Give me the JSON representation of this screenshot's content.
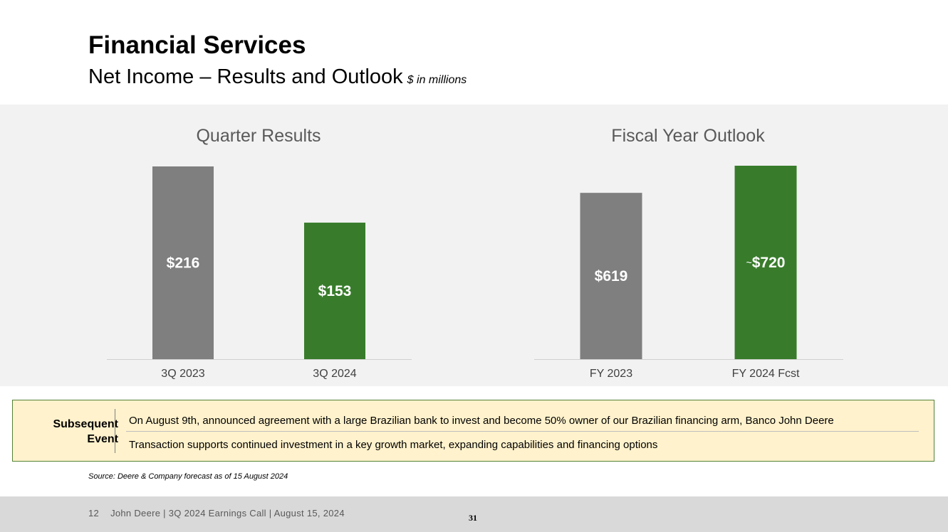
{
  "header": {
    "title": "Financial Services",
    "subtitle": "Net Income – Results and Outlook",
    "units": "$ in millions"
  },
  "colors": {
    "gray_bar": "#7f7f7f",
    "green_bar": "#387c2b",
    "band": "#f2f2f2"
  },
  "chart_data": [
    {
      "type": "bar",
      "title": "Quarter Results",
      "categories": [
        "3Q 2023",
        "3Q 2024"
      ],
      "values": [
        216,
        153
      ],
      "labels": [
        "$216",
        "$153"
      ],
      "colors": [
        "#7f7f7f",
        "#387c2b"
      ],
      "xlabel": "",
      "ylabel": "",
      "ylim": [
        0,
        216
      ],
      "grid": false,
      "legend": "none"
    },
    {
      "type": "bar",
      "title": "Fiscal Year Outlook",
      "categories": [
        "FY 2023",
        "FY 2024 Fcst"
      ],
      "values": [
        619,
        720
      ],
      "labels": [
        "$619",
        "$720"
      ],
      "label_prefixes": [
        "",
        "~"
      ],
      "colors": [
        "#7f7f7f",
        "#387c2b"
      ],
      "xlabel": "",
      "ylabel": "",
      "ylim": [
        0,
        720
      ],
      "grid": false,
      "legend": "none"
    }
  ],
  "event": {
    "label": "Subsequent Event",
    "lines": [
      "On August 9th, announced agreement with a large Brazilian bank to invest and become 50% owner of our Brazilian financing arm, Banco John Deere",
      "Transaction supports continued investment in a key growth market, expanding capabilities and financing options"
    ]
  },
  "source": "Source: Deere & Company forecast as of 15 August 2024",
  "footer": {
    "slide_number": "12",
    "text": "John Deere | 3Q 2024 Earnings Call | August 15, 2024",
    "page_number": "31"
  }
}
